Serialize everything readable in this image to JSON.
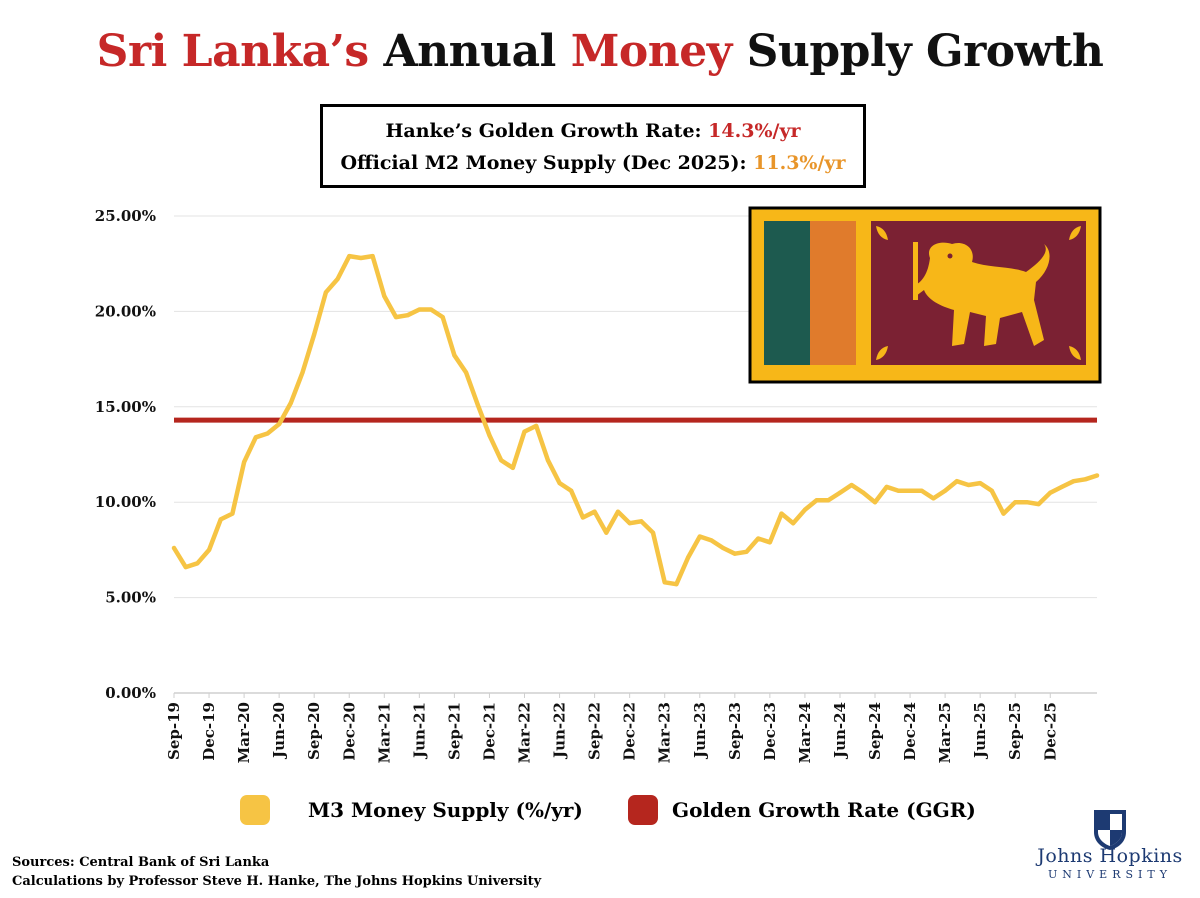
{
  "title": {
    "part1": "Sri Lanka’s",
    "part2": "Annual",
    "part3": "Money",
    "part4": "Supply Growth"
  },
  "infobox": {
    "line1_label": "Hanke’s Golden Growth Rate:",
    "line1_value": "14.3%/yr",
    "line2_label": "Official M2 Money Supply (Dec 2025):",
    "line2_value": "11.3%/yr"
  },
  "colors": {
    "m3_line": "#f6c444",
    "ggr_line": "#b5261e",
    "title_red": "#c62828",
    "value_orange": "#e8952a",
    "flag_gold": "#f7b718",
    "flag_maroon": "#7b2133",
    "flag_green": "#1d5a4f",
    "flag_orange": "#e07b2c"
  },
  "chart_data": {
    "type": "line",
    "title": "Sri Lanka’s Annual Money Supply Growth",
    "xlabel": "",
    "ylabel": "",
    "ylim": [
      0,
      25
    ],
    "yticks": [
      "0.00%",
      "5.00%",
      "10.00%",
      "15.00%",
      "20.00%",
      "25.00%"
    ],
    "ytick_values": [
      0,
      5,
      10,
      15,
      20,
      25
    ],
    "x_start": "Sep-19",
    "x_end": "Jan-26",
    "xticks": [
      "Sep-19",
      "Dec-19",
      "Mar-20",
      "Jun-20",
      "Sep-20",
      "Dec-20",
      "Mar-21",
      "Jun-21",
      "Sep-21",
      "Dec-21",
      "Mar-22",
      "Jun-22",
      "Sep-22",
      "Dec-22",
      "Mar-23",
      "Jun-23",
      "Sep-23",
      "Dec-23",
      "Mar-24",
      "Jun-24",
      "Sep-24",
      "Dec-24",
      "Mar-25",
      "Jun-25",
      "Sep-25",
      "Dec-25"
    ],
    "grid": true,
    "legend_position": "bottom",
    "series": [
      {
        "name": "M3 Money Supply (%/yr)",
        "type": "line",
        "values": [
          7.6,
          6.6,
          6.8,
          7.5,
          9.1,
          9.4,
          12.1,
          13.4,
          13.6,
          14.1,
          15.2,
          16.8,
          18.8,
          21.0,
          21.7,
          22.9,
          22.8,
          22.9,
          20.8,
          19.7,
          19.8,
          20.1,
          20.1,
          19.7,
          17.7,
          16.8,
          15.1,
          13.5,
          12.2,
          11.8,
          13.7,
          14.0,
          12.2,
          11.0,
          10.6,
          9.2,
          9.5,
          8.4,
          9.5,
          8.9,
          9.0,
          8.4,
          5.8,
          5.7,
          7.1,
          8.2,
          8.0,
          7.6,
          7.3,
          7.4,
          8.1,
          7.9,
          9.4,
          8.9,
          9.6,
          10.1,
          10.1,
          10.5,
          10.9,
          10.5,
          10.0,
          10.8,
          10.6,
          10.6,
          10.6,
          10.2,
          10.6,
          11.1,
          10.9,
          11.0,
          10.6,
          9.4,
          10.0,
          10.0,
          9.9,
          10.5,
          10.8,
          11.1,
          11.2,
          11.4
        ]
      },
      {
        "name": "Golden Growth Rate (GGR)",
        "type": "constant",
        "value": 14.3
      }
    ]
  },
  "legend": {
    "m3_label": "M3 Money Supply (%/yr)",
    "ggr_label": "Golden Growth Rate (GGR)"
  },
  "sources": {
    "line1": "Sources: Central Bank of Sri Lanka",
    "line2": "Calculations by Professor Steve H. Hanke, The Johns Hopkins University"
  },
  "logo": {
    "name": "Johns Hopkins",
    "sub": "UNIVERSITY"
  }
}
